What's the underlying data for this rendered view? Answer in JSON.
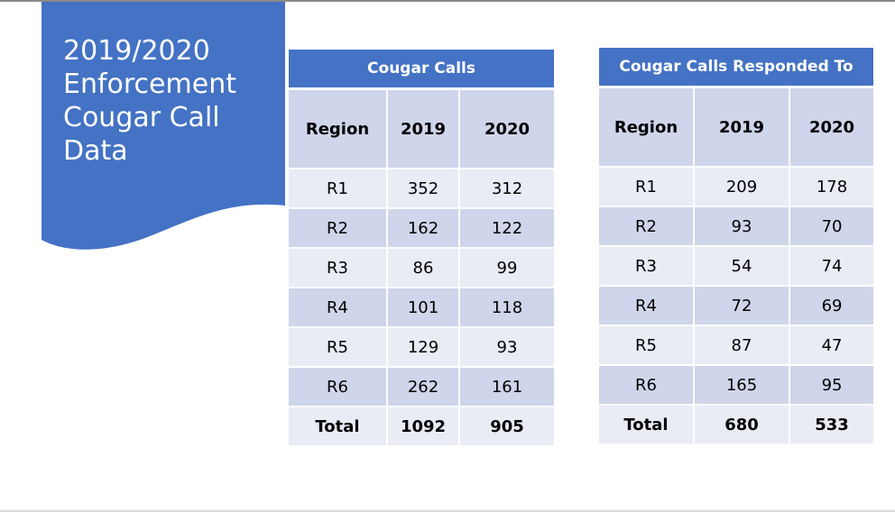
{
  "slide": {
    "title": "2019/2020\nEnforcement\nCougar Call\nData",
    "colors": {
      "accent": "#4472c4",
      "header_band": "#cfd5ea",
      "row_light": "#e9ebf5",
      "row_dark": "#cfd5ea"
    }
  },
  "tables": {
    "calls": {
      "title": "Cougar Calls",
      "headers": [
        "Region",
        "2019",
        "2020"
      ],
      "rows": [
        [
          "R1",
          "352",
          "312"
        ],
        [
          "R2",
          "162",
          "122"
        ],
        [
          "R3",
          "86",
          "99"
        ],
        [
          "R4",
          "101",
          "118"
        ],
        [
          "R5",
          "129",
          "93"
        ],
        [
          "R6",
          "262",
          "161"
        ]
      ],
      "total": [
        "Total",
        "1092",
        "905"
      ]
    },
    "responded": {
      "title": "Cougar Calls Responded To",
      "headers": [
        "Region",
        "2019",
        "2020"
      ],
      "rows": [
        [
          "R1",
          "209",
          "178"
        ],
        [
          "R2",
          "93",
          "70"
        ],
        [
          "R3",
          "54",
          "74"
        ],
        [
          "R4",
          "72",
          "69"
        ],
        [
          "R5",
          "87",
          "47"
        ],
        [
          "R6",
          "165",
          "95"
        ]
      ],
      "total": [
        "Total",
        "680",
        "533"
      ]
    }
  }
}
